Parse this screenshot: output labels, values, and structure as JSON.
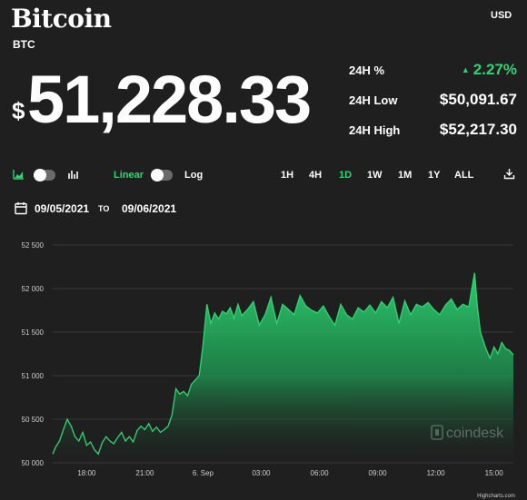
{
  "header": {
    "title": "Bitcoin",
    "symbol": "BTC",
    "currency": "USD",
    "price_prefix": "$",
    "price": "51,228.33"
  },
  "stats": {
    "change_label": "24H %",
    "change_value": "2.27%",
    "change_direction": "up",
    "low_label": "24H Low",
    "low_value": "$50,091.67",
    "high_label": "24H High",
    "high_value": "$52,217.30"
  },
  "toolbar": {
    "scale_linear": "Linear",
    "scale_log": "Log",
    "ranges": [
      "1H",
      "4H",
      "1D",
      "1W",
      "1M",
      "1Y",
      "ALL"
    ],
    "selected_range": "1D",
    "icons": [
      "area-chart-icon",
      "bar-chart-icon",
      "calendar-icon",
      "download-icon"
    ]
  },
  "date_range": {
    "from": "09/05/2021",
    "to_label": "TO",
    "to": "09/06/2021"
  },
  "chart_data": {
    "type": "area",
    "ylim": [
      50000,
      52500
    ],
    "yticks": [
      50000,
      50500,
      51000,
      51500,
      52000,
      52500
    ],
    "ytick_labels": [
      "50 000",
      "50 500",
      "51 000",
      "51 500",
      "52 000",
      "52 500"
    ],
    "xlim": [
      16.25,
      40.0
    ],
    "xticks": [
      18,
      21,
      24,
      27,
      30,
      33,
      36,
      39
    ],
    "xtick_labels": [
      "18:00",
      "21:00",
      "6. Sep",
      "03:00",
      "06:00",
      "09:00",
      "12:00",
      "15:00"
    ],
    "x_units": "hours since 09/05/2021 00:00",
    "x": [
      16.25,
      16.4,
      16.6,
      16.8,
      17.0,
      17.2,
      17.4,
      17.6,
      17.8,
      18.0,
      18.2,
      18.4,
      18.6,
      18.8,
      19.0,
      19.2,
      19.4,
      19.6,
      19.8,
      20.0,
      20.2,
      20.4,
      20.6,
      20.8,
      21.0,
      21.2,
      21.4,
      21.6,
      21.8,
      22.0,
      22.2,
      22.4,
      22.6,
      22.8,
      23.0,
      23.2,
      23.4,
      23.6,
      23.8,
      24.0,
      24.2,
      24.4,
      24.6,
      24.8,
      25.0,
      25.2,
      25.4,
      25.6,
      25.8,
      26.0,
      26.3,
      26.6,
      26.9,
      27.2,
      27.5,
      27.8,
      28.1,
      28.4,
      28.7,
      29.0,
      29.3,
      29.6,
      29.9,
      30.2,
      30.5,
      30.8,
      31.1,
      31.4,
      31.7,
      32.0,
      32.3,
      32.6,
      32.9,
      33.2,
      33.5,
      33.8,
      34.1,
      34.4,
      34.7,
      35.0,
      35.3,
      35.6,
      35.9,
      36.2,
      36.5,
      36.8,
      37.1,
      37.4,
      37.7,
      38.0,
      38.15,
      38.3,
      38.45,
      38.6,
      38.8,
      39.0,
      39.2,
      39.4,
      39.6,
      39.8,
      40.0
    ],
    "y": [
      50100,
      50180,
      50250,
      50380,
      50500,
      50420,
      50300,
      50250,
      50350,
      50200,
      50240,
      50150,
      50100,
      50230,
      50300,
      50250,
      50220,
      50290,
      50350,
      50250,
      50300,
      50240,
      50370,
      50420,
      50380,
      50450,
      50360,
      50410,
      50350,
      50380,
      50420,
      50550,
      50850,
      50790,
      50820,
      50770,
      50900,
      50950,
      51000,
      51350,
      51820,
      51600,
      51720,
      51650,
      51740,
      51710,
      51780,
      51660,
      51820,
      51690,
      51760,
      51850,
      51580,
      51700,
      51900,
      51600,
      51820,
      51760,
      51700,
      51920,
      51800,
      51750,
      51720,
      51800,
      51680,
      51580,
      51820,
      51700,
      51650,
      51780,
      51730,
      51810,
      51720,
      51850,
      51780,
      51900,
      51600,
      51860,
      51700,
      51820,
      51790,
      51840,
      51760,
      51700,
      51810,
      51880,
      51760,
      51820,
      51790,
      52180,
      51780,
      51500,
      51400,
      51300,
      51200,
      51330,
      51250,
      51380,
      51310,
      51290,
      51240
    ],
    "watermark": "coindesk",
    "credits": "Highcharts.com",
    "line_color": "#2ed573"
  }
}
